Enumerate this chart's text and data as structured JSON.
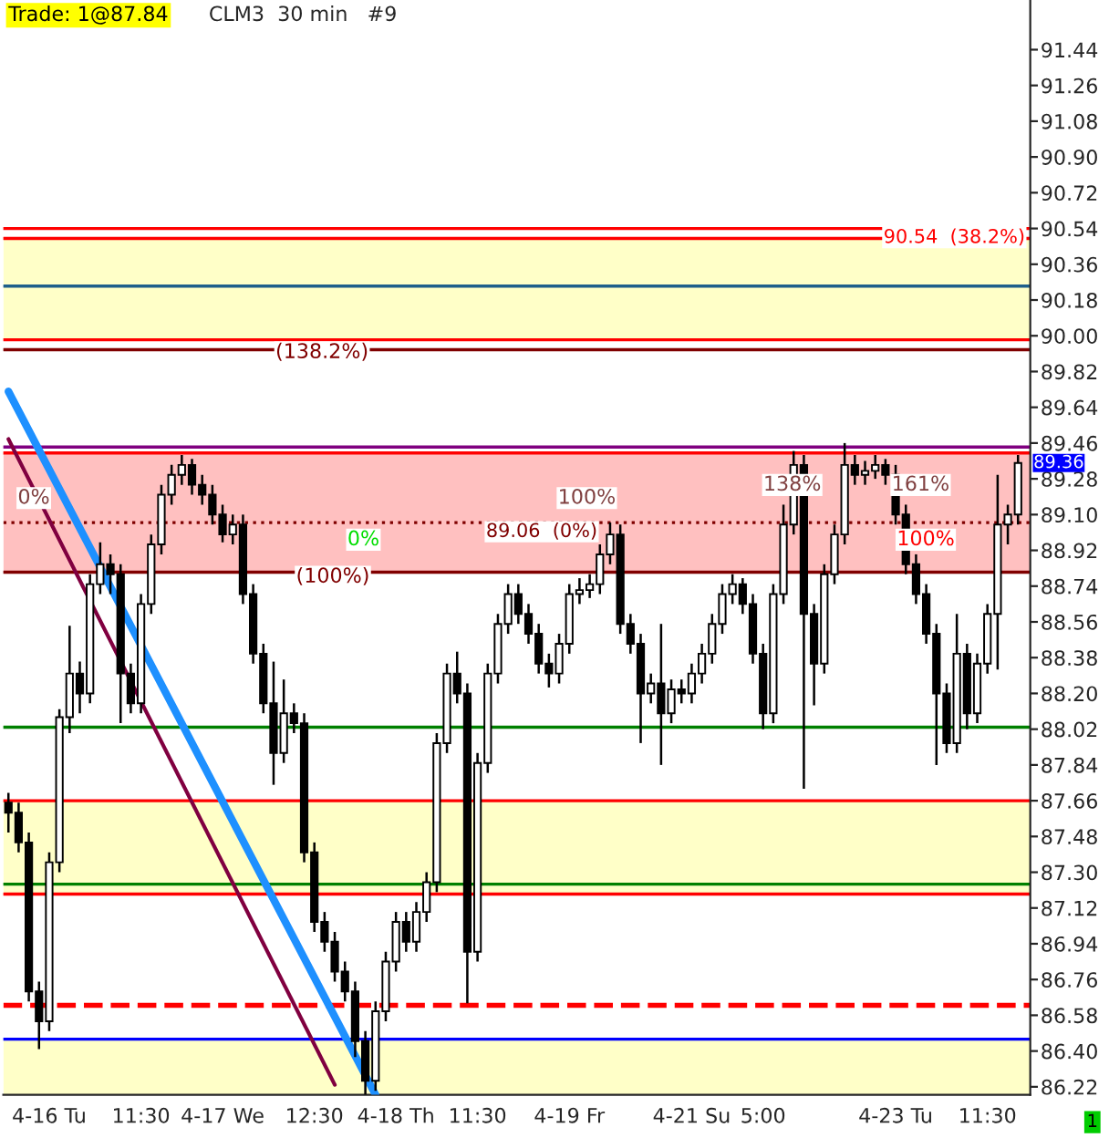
{
  "chart_data": {
    "type": "candlestick",
    "title": "CLM3  30 min   #9",
    "categories": [
      null,
      null,
      null,
      null,
      "4-16 Tu",
      null,
      null,
      null,
      null,
      null,
      null,
      null,
      null,
      "11:30",
      null,
      null,
      null,
      null,
      null,
      null,
      null,
      "4-17 We",
      null,
      null,
      null,
      null,
      null,
      null,
      null,
      null,
      "12:30",
      null,
      null,
      null,
      null,
      null,
      null,
      null,
      "4-18 Th",
      null,
      null,
      null,
      null,
      null,
      null,
      null,
      "11:30",
      null,
      null,
      null,
      null,
      null,
      null,
      null,
      null,
      "4-19 Fr",
      null,
      null,
      null,
      null,
      null,
      null,
      null,
      null,
      null,
      null,
      null,
      "4-21 Su",
      null,
      null,
      null,
      null,
      null,
      null,
      "5:00",
      null,
      null,
      null,
      null,
      null,
      null,
      null,
      null,
      null,
      null,
      null,
      null,
      "4-23 Tu",
      null,
      null,
      null,
      null,
      null,
      null,
      null,
      null,
      "11:30",
      null,
      null,
      null
    ],
    "ohlc": [
      [
        87.65,
        87.7,
        87.5,
        87.6
      ],
      [
        87.6,
        87.65,
        87.4,
        87.45
      ],
      [
        87.45,
        87.5,
        86.65,
        86.7
      ],
      [
        86.7,
        86.75,
        86.41,
        86.55
      ],
      [
        86.55,
        87.4,
        86.5,
        87.35
      ],
      [
        87.35,
        88.12,
        87.3,
        88.08
      ],
      [
        88.08,
        88.54,
        88.0,
        88.3
      ],
      [
        88.3,
        88.36,
        88.1,
        88.2
      ],
      [
        88.2,
        88.8,
        88.15,
        88.75
      ],
      [
        88.75,
        88.96,
        88.7,
        88.85
      ],
      [
        88.85,
        88.9,
        88.7,
        88.8
      ],
      [
        88.8,
        88.85,
        88.05,
        88.3
      ],
      [
        88.3,
        88.35,
        88.1,
        88.15
      ],
      [
        88.15,
        88.7,
        88.1,
        88.65
      ],
      [
        88.65,
        89.0,
        88.6,
        88.95
      ],
      [
        88.95,
        89.25,
        88.9,
        89.2
      ],
      [
        89.2,
        89.35,
        89.15,
        89.3
      ],
      [
        89.3,
        89.4,
        89.25,
        89.35
      ],
      [
        89.35,
        89.38,
        89.2,
        89.25
      ],
      [
        89.25,
        89.3,
        89.15,
        89.2
      ],
      [
        89.2,
        89.25,
        89.05,
        89.1
      ],
      [
        89.1,
        89.15,
        88.96,
        89.0
      ],
      [
        89.0,
        89.1,
        88.95,
        89.05
      ],
      [
        89.05,
        89.1,
        88.65,
        88.7
      ],
      [
        88.7,
        88.75,
        88.35,
        88.4
      ],
      [
        88.4,
        88.45,
        88.1,
        88.15
      ],
      [
        88.15,
        88.36,
        87.74,
        87.9
      ],
      [
        87.9,
        88.27,
        87.85,
        88.1
      ],
      [
        88.1,
        88.15,
        88.0,
        88.05
      ],
      [
        88.05,
        88.1,
        87.35,
        87.4
      ],
      [
        87.4,
        87.45,
        87.0,
        87.05
      ],
      [
        87.05,
        87.1,
        86.9,
        86.95
      ],
      [
        86.95,
        87.0,
        86.75,
        86.8
      ],
      [
        86.8,
        86.85,
        86.65,
        86.7
      ],
      [
        86.7,
        86.75,
        86.37,
        86.45
      ],
      [
        86.45,
        86.5,
        86.18,
        86.25
      ],
      [
        86.25,
        86.65,
        86.2,
        86.6
      ],
      [
        86.6,
        86.9,
        86.55,
        86.85
      ],
      [
        86.85,
        87.1,
        86.8,
        87.05
      ],
      [
        87.05,
        87.1,
        86.9,
        86.95
      ],
      [
        86.95,
        87.15,
        86.9,
        87.1
      ],
      [
        87.1,
        87.3,
        87.05,
        87.25
      ],
      [
        87.25,
        88.0,
        87.2,
        87.95
      ],
      [
        87.95,
        88.35,
        87.9,
        88.3
      ],
      [
        88.3,
        88.41,
        88.15,
        88.2
      ],
      [
        88.2,
        88.25,
        86.64,
        86.9
      ],
      [
        86.9,
        87.9,
        86.85,
        87.85
      ],
      [
        87.85,
        88.35,
        87.8,
        88.3
      ],
      [
        88.3,
        88.6,
        88.25,
        88.55
      ],
      [
        88.55,
        88.75,
        88.5,
        88.7
      ],
      [
        88.7,
        88.75,
        88.55,
        88.6
      ],
      [
        88.6,
        88.65,
        88.45,
        88.5
      ],
      [
        88.5,
        88.55,
        88.3,
        88.35
      ],
      [
        88.35,
        88.4,
        88.23,
        88.3
      ],
      [
        88.3,
        88.5,
        88.25,
        88.45
      ],
      [
        88.45,
        88.75,
        88.4,
        88.7
      ],
      [
        88.7,
        88.78,
        88.65,
        88.72
      ],
      [
        88.72,
        88.8,
        88.68,
        88.75
      ],
      [
        88.75,
        88.95,
        88.7,
        88.9
      ],
      [
        88.9,
        89.06,
        88.85,
        89.0
      ],
      [
        89.0,
        89.05,
        88.5,
        88.55
      ],
      [
        88.55,
        88.6,
        88.4,
        88.45
      ],
      [
        88.45,
        88.5,
        87.95,
        88.2
      ],
      [
        88.2,
        88.3,
        88.15,
        88.25
      ],
      [
        88.25,
        88.55,
        87.84,
        88.1
      ],
      [
        88.1,
        88.27,
        88.05,
        88.22
      ],
      [
        88.22,
        88.27,
        88.15,
        88.2
      ],
      [
        88.2,
        88.35,
        88.15,
        88.3
      ],
      [
        88.3,
        88.45,
        88.25,
        88.4
      ],
      [
        88.4,
        88.6,
        88.35,
        88.55
      ],
      [
        88.55,
        88.75,
        88.5,
        88.7
      ],
      [
        88.7,
        88.8,
        88.65,
        88.75
      ],
      [
        88.75,
        88.78,
        88.6,
        88.65
      ],
      [
        88.65,
        88.7,
        88.35,
        88.4
      ],
      [
        88.4,
        88.45,
        88.02,
        88.1
      ],
      [
        88.1,
        88.75,
        88.05,
        88.7
      ],
      [
        88.7,
        89.15,
        88.65,
        89.05
      ],
      [
        89.05,
        89.42,
        89.0,
        89.35
      ],
      [
        89.35,
        89.4,
        87.72,
        88.6
      ],
      [
        88.6,
        88.65,
        88.14,
        88.35
      ],
      [
        88.35,
        88.85,
        88.3,
        88.8
      ],
      [
        88.8,
        89.05,
        88.75,
        89.0
      ],
      [
        89.0,
        89.46,
        88.95,
        89.35
      ],
      [
        89.35,
        89.4,
        89.25,
        89.3
      ],
      [
        89.3,
        89.37,
        89.25,
        89.32
      ],
      [
        89.32,
        89.4,
        89.28,
        89.35
      ],
      [
        89.35,
        89.38,
        89.25,
        89.3
      ],
      [
        89.3,
        89.35,
        89.05,
        89.1
      ],
      [
        89.1,
        89.15,
        88.8,
        88.85
      ],
      [
        88.85,
        88.9,
        88.65,
        88.7
      ],
      [
        88.7,
        88.75,
        88.45,
        88.5
      ],
      [
        88.5,
        88.55,
        87.84,
        88.2
      ],
      [
        88.2,
        88.25,
        87.9,
        87.95
      ],
      [
        87.95,
        88.6,
        87.9,
        88.4
      ],
      [
        88.4,
        88.45,
        88.02,
        88.1
      ],
      [
        88.1,
        88.4,
        88.05,
        88.35
      ],
      [
        88.35,
        88.65,
        88.3,
        88.6
      ],
      [
        88.6,
        89.3,
        88.32,
        89.05
      ],
      [
        89.05,
        89.15,
        88.95,
        89.1
      ],
      [
        89.1,
        89.4,
        89.05,
        89.36
      ]
    ],
    "series": [
      {
        "type": "line",
        "color": "#1e90ff",
        "values": [
          89.72,
          null,
          null,
          null,
          null,
          null,
          null,
          null,
          null,
          null,
          null,
          null,
          null,
          null,
          null,
          null,
          null,
          null,
          null,
          null,
          null,
          null,
          null,
          null,
          null,
          null,
          null,
          null,
          null,
          null,
          null,
          null,
          null,
          null,
          null,
          null,
          86.18,
          null,
          null,
          null,
          null,
          null,
          null,
          null,
          null,
          null,
          null,
          null,
          null,
          null,
          null,
          null,
          null,
          null,
          null,
          null,
          null,
          null,
          null,
          null,
          null,
          null,
          null,
          null,
          null,
          null,
          null,
          null,
          null,
          null,
          null,
          null,
          null,
          null,
          null,
          null,
          null,
          null,
          null,
          null,
          null,
          null,
          null,
          null,
          null,
          null,
          null,
          null,
          null,
          null,
          null,
          null,
          null,
          null,
          null,
          null,
          null,
          null,
          null,
          null
        ]
      },
      {
        "type": "line",
        "color": "#800040",
        "values": [
          89.48,
          null,
          null,
          null,
          null,
          null,
          null,
          null,
          null,
          null,
          null,
          null,
          null,
          null,
          null,
          null,
          null,
          null,
          null,
          null,
          null,
          null,
          null,
          null,
          null,
          null,
          null,
          null,
          null,
          null,
          null,
          null,
          86.23,
          null,
          null,
          null,
          null,
          null,
          null,
          null,
          null,
          null,
          null,
          null,
          null,
          null,
          null,
          null,
          null,
          null,
          null,
          null,
          null,
          null,
          null,
          null,
          null,
          null,
          null,
          null,
          null,
          null,
          null,
          null,
          null,
          null,
          null,
          null,
          null,
          null,
          null,
          null,
          null,
          null,
          null,
          null,
          null,
          null,
          null,
          null,
          null,
          null,
          null,
          null,
          null,
          null,
          null,
          null,
          null,
          null,
          null,
          null,
          null,
          null,
          null,
          null,
          null,
          null,
          null,
          null
        ]
      }
    ],
    "ylim": [
      86.18,
      91.69
    ],
    "yticks": [
      86.22,
      {
        "value": 86.4,
        "label": "86.40"
      },
      86.58,
      86.76,
      86.94,
      87.12,
      {
        "value": 87.3,
        "label": "87.30"
      },
      87.48,
      87.66,
      87.84,
      88.02,
      {
        "value": 88.2,
        "label": "88.20"
      },
      88.38,
      88.56,
      88.74,
      88.92,
      {
        "value": 89.1,
        "label": "89.10"
      },
      89.28,
      89.46,
      89.64,
      89.82,
      {
        "value": 90,
        "label": "90.00"
      },
      90.18,
      90.36,
      90.54,
      90.72,
      {
        "value": 90.9,
        "label": "90.90"
      },
      91.08,
      91.26,
      91.44
    ],
    "bands": [
      {
        "axis": "y",
        "from": 89.98,
        "to": 90.49,
        "color": "#ffffc8"
      },
      {
        "axis": "y",
        "from": 88.81,
        "to": 89.41,
        "color": "#ffc0c0"
      },
      {
        "axis": "y",
        "from": 87.19,
        "to": 87.66,
        "color": "#ffffc8"
      },
      {
        "axis": "y",
        "from": 86.18,
        "to": 86.46,
        "color": "#ffffc8"
      }
    ],
    "ref_lines": [
      {
        "axis": "y",
        "value": 90.54,
        "label": "90.54  (38.2%)",
        "color": "#ff0000",
        "line_style": "solid"
      },
      {
        "axis": "y",
        "value": 90.49,
        "color": "#ff0000",
        "line_style": "solid"
      },
      {
        "axis": "y",
        "value": 90.25,
        "color": "#1f5f8b",
        "line_style": "solid"
      },
      {
        "axis": "y",
        "value": 89.98,
        "color": "#ff0000",
        "line_style": "solid"
      },
      {
        "axis": "y",
        "value": 89.93,
        "color": "#800000",
        "line_style": "solid"
      },
      {
        "axis": "y",
        "value": 89.44,
        "color": "#800080",
        "line_style": "solid"
      },
      {
        "axis": "y",
        "value": 89.41,
        "color": "#ff0000",
        "line_style": "solid"
      },
      {
        "axis": "y",
        "value": 89.06,
        "label": "89.06  (0%)",
        "color": "#800000",
        "line_style": "dotted"
      },
      {
        "axis": "y",
        "value": 88.81,
        "color": "#800000",
        "line_style": "solid"
      },
      {
        "axis": "y",
        "value": 88.03,
        "color": "#008000",
        "line_style": "solid"
      },
      {
        "axis": "y",
        "value": 87.66,
        "color": "#ff0000",
        "line_style": "solid"
      },
      {
        "axis": "y",
        "value": 87.24,
        "color": "#008000",
        "line_style": "solid"
      },
      {
        "axis": "y",
        "value": 87.19,
        "color": "#ff0000",
        "line_style": "solid"
      },
      {
        "axis": "y",
        "value": 86.63,
        "color": "#ff0000",
        "line_style": "dashed"
      },
      {
        "axis": "y",
        "value": 86.46,
        "color": "#0000ff",
        "line_style": "solid"
      }
    ],
    "annotations": [
      "Trade: 1@87.84",
      "(138.2%)",
      "0%",
      "0%",
      "(100%)",
      "100%",
      "138%",
      "161%",
      "100%",
      "89.36",
      "1"
    ],
    "grid": false,
    "legend": false
  }
}
